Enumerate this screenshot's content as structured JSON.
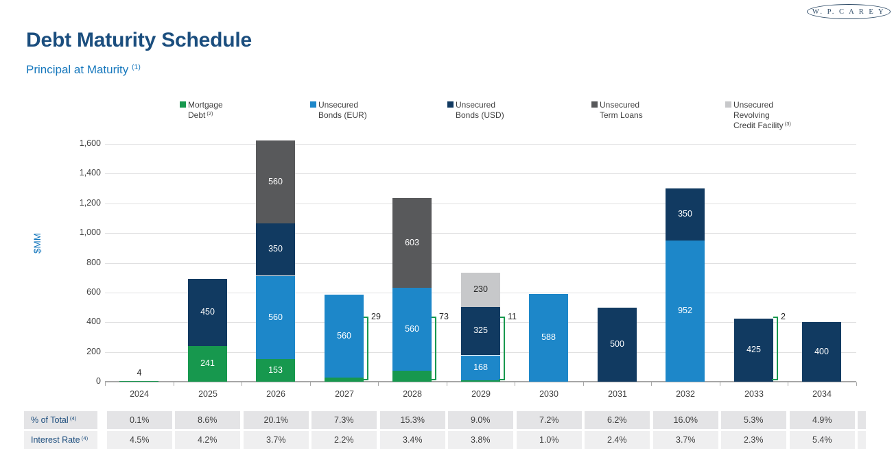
{
  "brand": {
    "logo_text": "W. P. C A R E Y"
  },
  "header": {
    "title": "Debt Maturity Schedule",
    "subtitle": "Principal at Maturity",
    "subtitle_footnote": "(1)"
  },
  "chart_data": {
    "type": "bar",
    "stacked": true,
    "title": "Debt Maturity Schedule",
    "subtitle": "Principal at Maturity (1)",
    "ylabel": "$MM",
    "ylim": [
      0,
      1600
    ],
    "ytick_interval": 200,
    "ytick_labels": [
      "0",
      "200",
      "400",
      "600",
      "800",
      "1,000",
      "1,200",
      "1,400",
      "1,600"
    ],
    "grid": "horizontal",
    "legend_position": "top",
    "categories": [
      "2024",
      "2025",
      "2026",
      "2027",
      "2028",
      "2029",
      "2030",
      "2031",
      "2032",
      "2033",
      "2034"
    ],
    "series": [
      {
        "name": "Mortgage Debt",
        "footnote": "(2)",
        "legend_lines": [
          "Mortgage",
          "Debt"
        ],
        "color": "#17984e",
        "values": [
          4,
          241,
          153,
          29,
          73,
          11,
          0,
          0,
          0,
          2,
          0
        ]
      },
      {
        "name": "Unsecured Bonds (EUR)",
        "footnote": null,
        "legend_lines": [
          "Unsecured",
          "Bonds (EUR)"
        ],
        "color": "#1d87c9",
        "values": [
          0,
          0,
          560,
          560,
          560,
          168,
          588,
          0,
          952,
          0,
          0
        ]
      },
      {
        "name": "Unsecured Bonds (USD)",
        "footnote": null,
        "legend_lines": [
          "Unsecured",
          "Bonds (USD)"
        ],
        "color": "#113a61",
        "values": [
          0,
          450,
          350,
          0,
          0,
          325,
          0,
          500,
          350,
          425,
          400
        ]
      },
      {
        "name": "Unsecured Term Loans",
        "footnote": null,
        "legend_lines": [
          "Unsecured",
          "Term Loans"
        ],
        "color": "#58595b",
        "values": [
          0,
          0,
          560,
          0,
          603,
          0,
          0,
          0,
          0,
          0,
          0
        ]
      },
      {
        "name": "Unsecured Revolving Credit Facility",
        "footnote": "(3)",
        "legend_lines": [
          "Unsecured",
          "Revolving",
          "Credit Facility"
        ],
        "color": "#c7c8ca",
        "values": [
          0,
          0,
          0,
          0,
          0,
          230,
          0,
          0,
          0,
          0,
          0
        ]
      }
    ],
    "annotations": [
      {
        "category": "2024",
        "label": "4",
        "style": "above"
      },
      {
        "category": "2027",
        "label": "29",
        "style": "bracket"
      },
      {
        "category": "2028",
        "label": "73",
        "style": "bracket"
      },
      {
        "category": "2029",
        "label": "11",
        "style": "bracket"
      },
      {
        "category": "2033",
        "label": "2",
        "style": "bracket"
      }
    ]
  },
  "table": {
    "rows": [
      {
        "label": "% of Total",
        "footnote": "(4)",
        "values": [
          "0.1%",
          "8.6%",
          "20.1%",
          "7.3%",
          "15.3%",
          "9.0%",
          "7.2%",
          "6.2%",
          "16.0%",
          "5.3%",
          "4.9%"
        ]
      },
      {
        "label": "Interest Rate",
        "footnote": "(4)",
        "values": [
          "4.5%",
          "4.2%",
          "3.7%",
          "2.2%",
          "3.4%",
          "3.8%",
          "1.0%",
          "2.4%",
          "3.7%",
          "2.3%",
          "5.4%"
        ]
      }
    ]
  },
  "colors": {
    "title_navy": "#1b4e7e",
    "accent_blue": "#1778bd",
    "text_gray": "#404040",
    "annotation_dark": "#262626",
    "gridline": "#e0e0e1",
    "axis": "#a6a6a6",
    "table_row1_bg": "#e4e4e6",
    "table_row2_bg": "#efeff0",
    "table_label_navy": "#1c4d7d"
  }
}
